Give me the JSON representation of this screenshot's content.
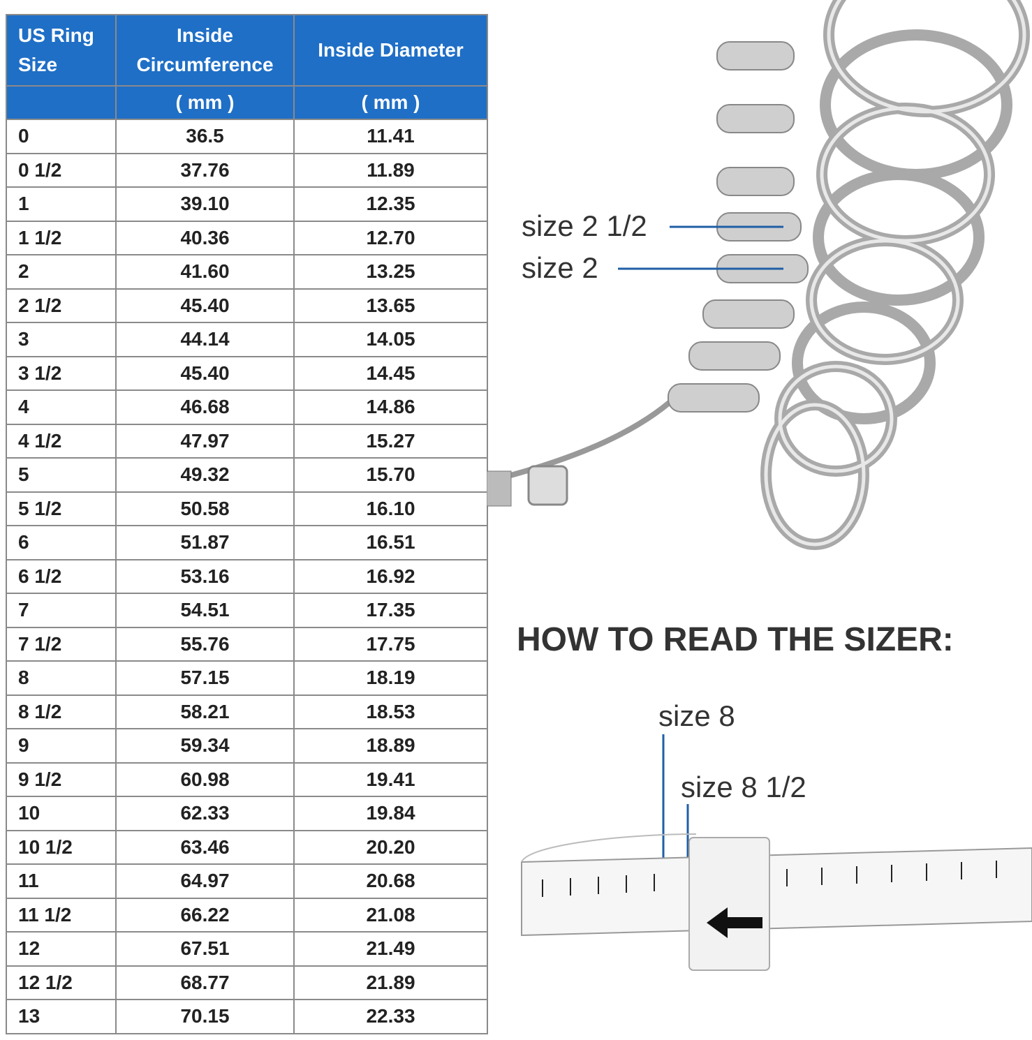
{
  "table": {
    "header": [
      "US Ring Size",
      "Inside Circumference",
      "Inside Diameter"
    ],
    "units": [
      "( mm )",
      "( mm )"
    ],
    "rows": [
      [
        "0",
        "36.5",
        "11.41"
      ],
      [
        "0 1/2",
        "37.76",
        "11.89"
      ],
      [
        "1",
        "39.10",
        "12.35"
      ],
      [
        "1 1/2",
        "40.36",
        "12.70"
      ],
      [
        "2",
        "41.60",
        "13.25"
      ],
      [
        "2 1/2",
        "45.40",
        "13.65"
      ],
      [
        "3",
        "44.14",
        "14.05"
      ],
      [
        "3 1/2",
        "45.40",
        "14.45"
      ],
      [
        "4",
        "46.68",
        "14.86"
      ],
      [
        "4 1/2",
        "47.97",
        "15.27"
      ],
      [
        "5",
        "49.32",
        "15.70"
      ],
      [
        "5 1/2",
        "50.58",
        "16.10"
      ],
      [
        "6",
        "51.87",
        "16.51"
      ],
      [
        "6 1/2",
        "53.16",
        "16.92"
      ],
      [
        "7",
        "54.51",
        "17.35"
      ],
      [
        "7 1/2",
        "55.76",
        "17.75"
      ],
      [
        "8",
        "57.15",
        "18.19"
      ],
      [
        "8 1/2",
        "58.21",
        "18.53"
      ],
      [
        "9",
        "59.34",
        "18.89"
      ],
      [
        "9 1/2",
        "60.98",
        "19.41"
      ],
      [
        "10",
        "62.33",
        "19.84"
      ],
      [
        "10 1/2",
        "63.46",
        "20.20"
      ],
      [
        "11",
        "64.97",
        "20.68"
      ],
      [
        "11 1/2",
        "66.22",
        "21.08"
      ],
      [
        "12",
        "67.51",
        "21.49"
      ],
      [
        "12 1/2",
        "68.77",
        "21.89"
      ],
      [
        "13",
        "70.15",
        "22.33"
      ]
    ]
  },
  "annotations": {
    "ring_labels": [
      "size 2 1/2",
      "size 2"
    ],
    "heading": "HOW TO READ THE SIZER:",
    "strip_labels": [
      "size 8",
      "size 8 1/2"
    ]
  }
}
